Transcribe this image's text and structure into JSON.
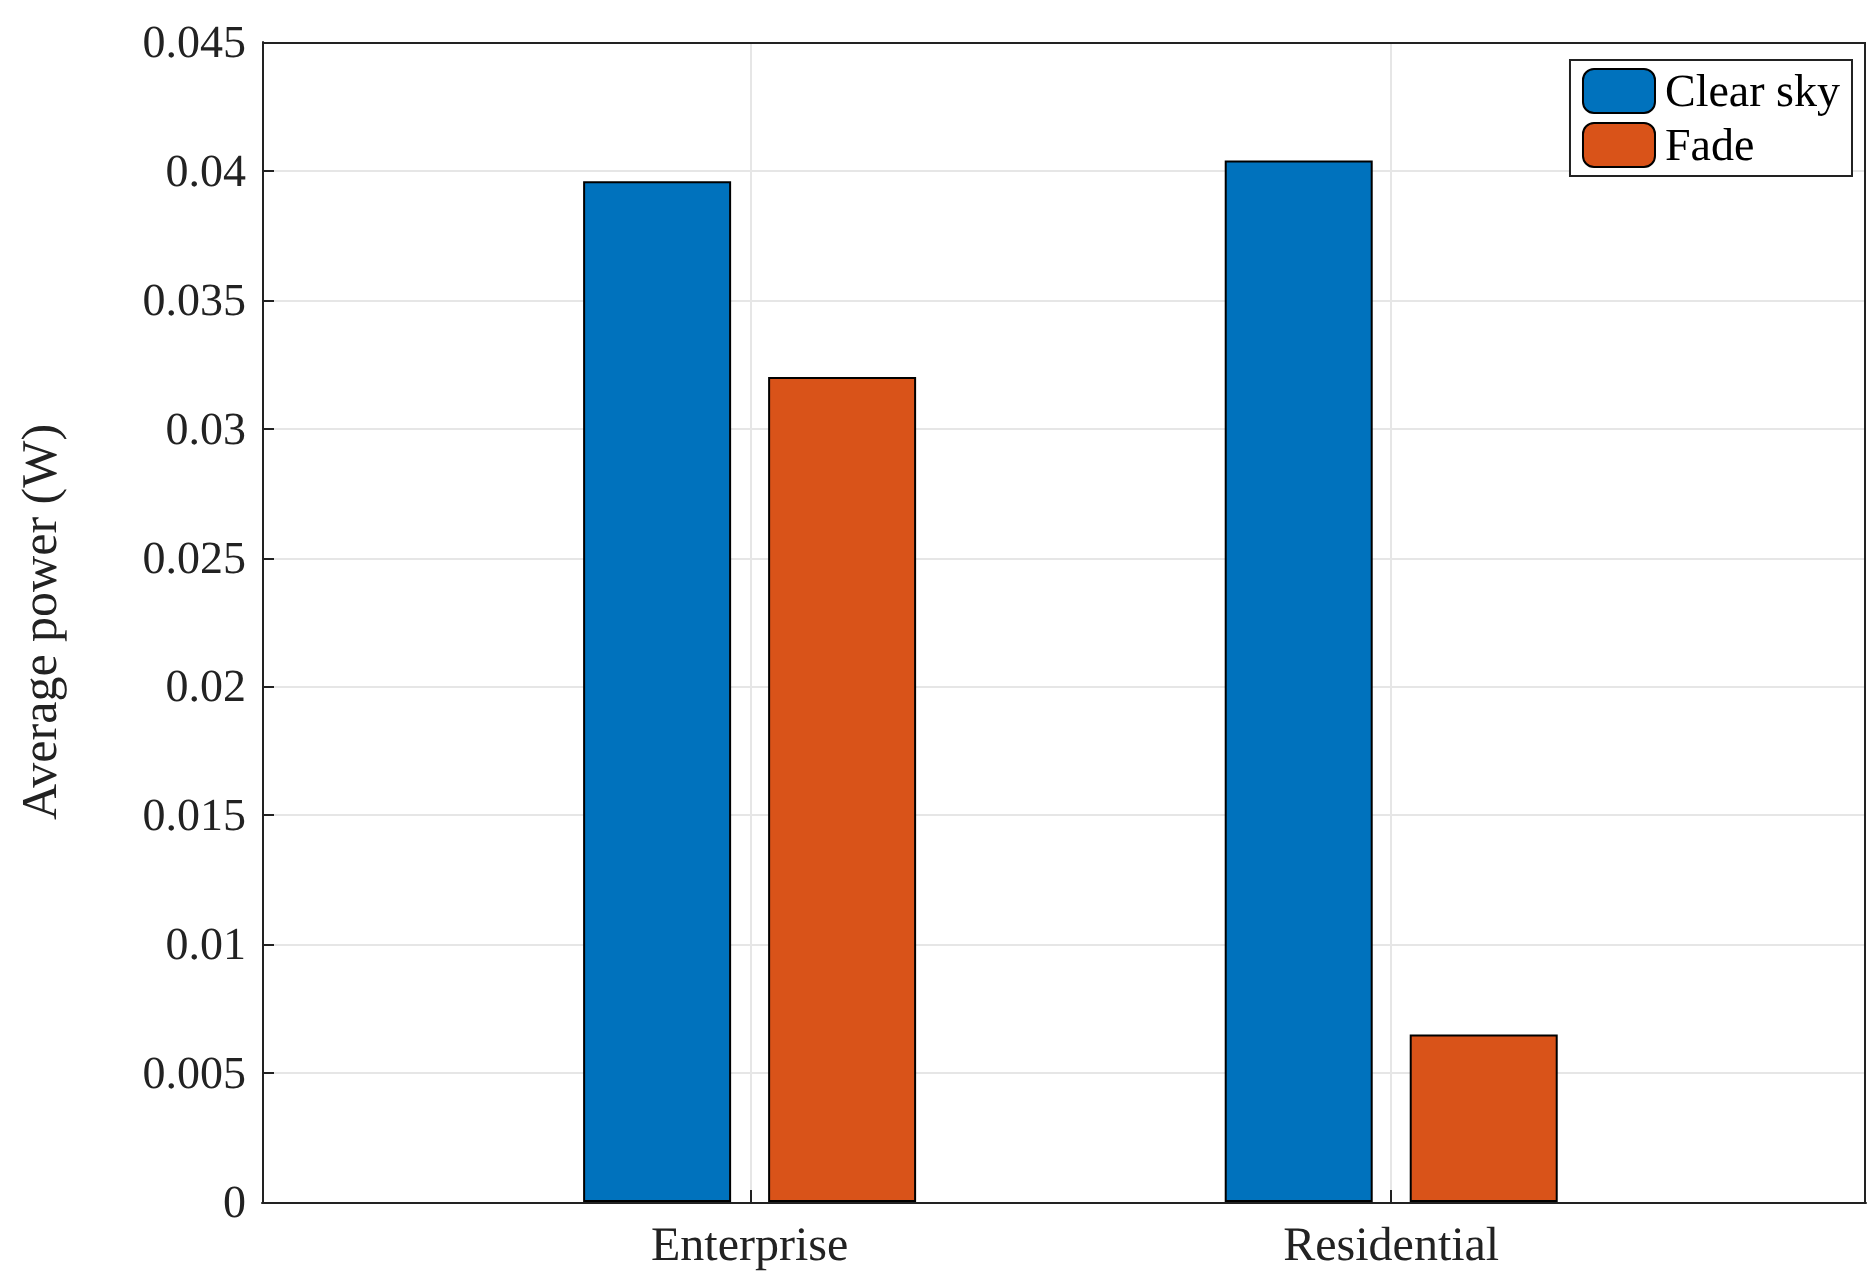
{
  "chart_data": {
    "type": "bar",
    "ylabel": "Average power (W)",
    "categories": [
      "Enterprise",
      "Residential"
    ],
    "series": [
      {
        "name": "Clear sky",
        "color": "#0072bd",
        "values": [
          0.0396,
          0.0404
        ]
      },
      {
        "name": "Fade",
        "color": "#d95319",
        "values": [
          0.032,
          0.0065
        ]
      }
    ],
    "ylim": [
      0,
      0.045
    ],
    "yticks": [
      0,
      0.005,
      0.01,
      0.015,
      0.02,
      0.025,
      0.03,
      0.035,
      0.04,
      0.045
    ],
    "grid": true,
    "legend": "top right"
  }
}
